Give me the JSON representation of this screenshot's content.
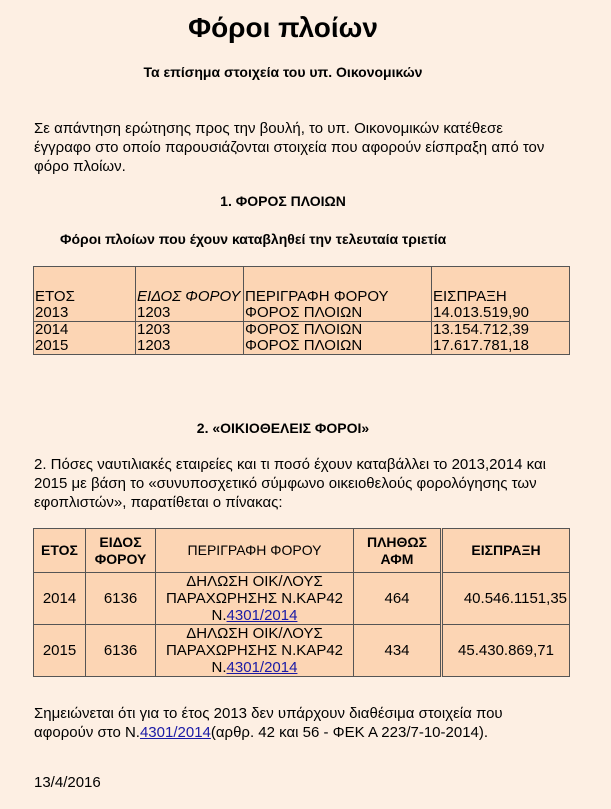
{
  "title": "Φόροι πλοίων",
  "subtitle": "Τα επίσημα στοιχεία του υπ. Οικονομικών",
  "intro": "Σε απάντηση ερώτησης προς την βουλή, το υπ. Οικονομικών κατέθεσε έγγραφο στο οποίο παρουσιάζονται στοιχεία που αφορούν είσπραξη από τον φόρο πλοίων.",
  "section1": {
    "heading": "1.  ΦΟΡΟΣ ΠΛΟΙΩΝ",
    "caption": "Φόροι πλοίων που έχουν καταβληθεί την τελευταία τριετία",
    "headers": [
      "ΕΤΟΣ",
      "ΕΙΔΟΣ ΦΟΡΟΥ",
      "ΠΕΡΙΓΡΑΦΗ ΦΟΡΟΥ",
      "ΕΙΣΠΡΑΞΗ"
    ],
    "rows": [
      [
        "2013",
        "1203",
        "ΦΟΡΟΣ ΠΛΟΙΩΝ",
        "14.013.519,90"
      ],
      [
        "2014",
        "1203",
        "ΦΟΡΟΣ ΠΛΟΙΩΝ",
        "13.154.712,39"
      ],
      [
        "2015",
        "1203",
        "ΦΟΡΟΣ ΠΛΟΙΩΝ",
        "17.617.781,18"
      ]
    ]
  },
  "section2": {
    "heading": "2. «ΟΙΚΙΟΘΕΛΕΙΣ ΦΟΡΟΙ»",
    "text": "2. Πόσες ναυτιλιακές εταιρείες και τι ποσό έχουν καταβάλλει το 2013,2014 και 2015 με βάση το «συνυποσχετικό σύμφωνο οικειοθελούς φορολόγησης των εφοπλιστών», παρατίθεται ο πίνακας:",
    "headers": [
      "ΕΤΟΣ",
      "ΕΙΔΟΣ ΦΟΡΟΥ",
      "ΠΕΡΙΓΡΑΦΗ ΦΟΡΟΥ",
      "ΠΛΗΘΩΣ ΑΦΜ",
      "ΕΙΣΠΡΑΞΗ"
    ],
    "rows": [
      {
        "year": "2014",
        "code": "6136",
        "desc": "ΔΗΛΩΣΗ ΟΙΚ/ΛΟΥΣ ΠΑΡΑΧΩΡΗΣΗΣ Ν.ΚΑΡ42",
        "prefix": "Ν.",
        "link": "4301/2014",
        "count": "464",
        "amount": "40.546.1151,35"
      },
      {
        "year": "2015",
        "code": "6136",
        "desc": "ΔΗΛΩΣΗ ΟΙΚ/ΛΟΥΣ ΠΑΡΑΧΩΡΗΣΗΣ Ν.ΚΑΡ42",
        "prefix": "Ν.",
        "link": "4301/2014",
        "count": "434",
        "amount": "45.430.869,71"
      }
    ]
  },
  "note": {
    "before": "Σημειώνεται ότι για το έτος 2013 δεν υπάρχουν διαθέσιμα στοιχεία που αφορούν στο Ν.",
    "link": "4301/2014",
    "after": "(αρθρ. 42 και 56 - ΦΕΚ Α 223/7-10-2014)."
  },
  "date": "13/4/2016",
  "colors": {
    "background": "#fdefe3",
    "table_fill": "#fcd5b4",
    "link": "#1a1aa6"
  }
}
